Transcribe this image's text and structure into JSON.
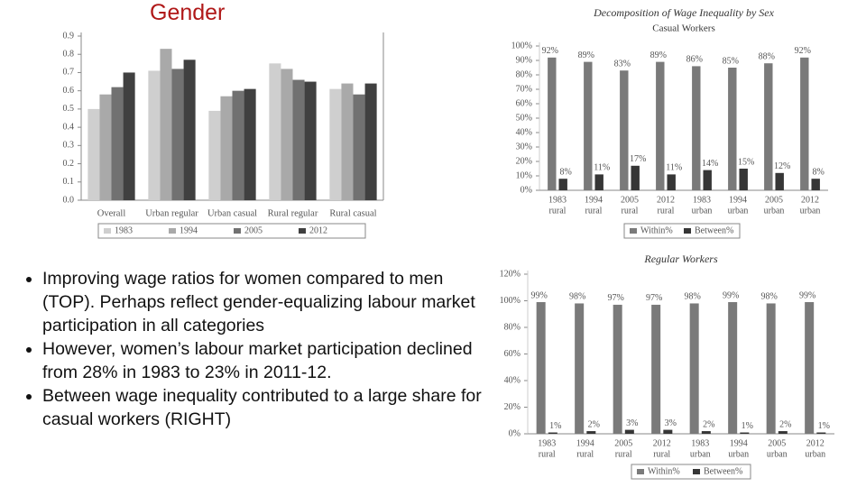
{
  "title": "Gender",
  "bullets": [
    "Improving wage ratios for women compared to men (TOP). Perhaps reflect gender-equalizing labour market participation in all categories",
    "However, women’s labour market participation declined from 28% in 1983 to 23% in 2011-12.",
    "Between wage inequality contributed to a large share for casual workers (RIGHT)"
  ],
  "chart_data": [
    {
      "type": "bar",
      "categories": [
        "Overall",
        "Urban regular",
        "Urban casual",
        "Rural regular",
        "Rural casual"
      ],
      "series": [
        {
          "name": "1983",
          "color": "#cfcfcf",
          "values": [
            0.5,
            0.71,
            0.49,
            0.75,
            0.61
          ]
        },
        {
          "name": "1994",
          "color": "#a9a9a9",
          "values": [
            0.58,
            0.83,
            0.57,
            0.72,
            0.64
          ]
        },
        {
          "name": "2005",
          "color": "#717171",
          "values": [
            0.62,
            0.72,
            0.6,
            0.66,
            0.58
          ]
        },
        {
          "name": "2012",
          "color": "#404040",
          "values": [
            0.7,
            0.77,
            0.61,
            0.65,
            0.64
          ]
        }
      ],
      "ylim": [
        0,
        0.9
      ],
      "yticks": [
        {
          "value": 0,
          "label": "0.0"
        },
        0.1,
        0.2,
        0.3,
        0.4,
        0.5,
        0.6,
        0.7,
        0.8,
        0.9
      ],
      "legend": "bottom"
    },
    {
      "type": "bar",
      "title": "Decomposition of Wage Inequality by Sex",
      "subtitle": "Casual Workers",
      "categories": [
        [
          "1983",
          "rural"
        ],
        [
          "1994",
          "rural"
        ],
        [
          "2005",
          "rural"
        ],
        [
          "2012",
          "rural"
        ],
        [
          "1983",
          "urban"
        ],
        [
          "1994",
          "urban"
        ],
        [
          "2005",
          "urban"
        ],
        [
          "2012",
          "urban"
        ]
      ],
      "series": [
        {
          "name": "Within%",
          "color": "#7a7a7a",
          "values": [
            92,
            89,
            83,
            89,
            86,
            85,
            88,
            92
          ],
          "value_labels": [
            "92%",
            "89%",
            "83%",
            "89%",
            "86%",
            "85%",
            "88%",
            "92%"
          ]
        },
        {
          "name": "Between%",
          "color": "#363636",
          "values": [
            8,
            11,
            17,
            11,
            14,
            15,
            12,
            8
          ],
          "value_labels": [
            "8%",
            "11%",
            "17%",
            "11%",
            "14%",
            "15%",
            "12%",
            "8%"
          ]
        }
      ],
      "ylim": [
        0,
        100
      ],
      "yticks": [
        {
          "value": 0,
          "label": "0%"
        },
        {
          "value": 10,
          "label": "10%"
        },
        {
          "value": 20,
          "label": "20%"
        },
        {
          "value": 30,
          "label": "30%"
        },
        {
          "value": 40,
          "label": "40%"
        },
        {
          "value": 50,
          "label": "50%"
        },
        {
          "value": 60,
          "label": "60%"
        },
        {
          "value": 70,
          "label": "70%"
        },
        {
          "value": 80,
          "label": "80%"
        },
        {
          "value": 90,
          "label": "90%"
        },
        {
          "value": 100,
          "label": "100%"
        }
      ],
      "legend": "bottom"
    },
    {
      "type": "bar",
      "title": "Regular Workers",
      "categories": [
        [
          "1983",
          "rural"
        ],
        [
          "1994",
          "rural"
        ],
        [
          "2005",
          "rural"
        ],
        [
          "2012",
          "rural"
        ],
        [
          "1983",
          "urban"
        ],
        [
          "1994",
          "urban"
        ],
        [
          "2005",
          "urban"
        ],
        [
          "2012",
          "urban"
        ]
      ],
      "series": [
        {
          "name": "Within%",
          "color": "#7a7a7a",
          "values": [
            99,
            98,
            97,
            97,
            98,
            99,
            98,
            99
          ],
          "value_labels": [
            "99%",
            "98%",
            "97%",
            "97%",
            "98%",
            "99%",
            "98%",
            "99%"
          ]
        },
        {
          "name": "Between%",
          "color": "#363636",
          "values": [
            1,
            2,
            3,
            3,
            2,
            1,
            2,
            1
          ],
          "value_labels": [
            "1%",
            "2%",
            "3%",
            "3%",
            "2%",
            "1%",
            "2%",
            "1%"
          ]
        }
      ],
      "ylim": [
        0,
        120
      ],
      "yticks": [
        {
          "value": 0,
          "label": "0%"
        },
        {
          "value": 20,
          "label": "20%"
        },
        {
          "value": 40,
          "label": "40%"
        },
        {
          "value": 60,
          "label": "60%"
        },
        {
          "value": 80,
          "label": "80%"
        },
        {
          "value": 100,
          "label": "100%"
        },
        {
          "value": 120,
          "label": "120%"
        }
      ],
      "legend": "bottom"
    }
  ]
}
